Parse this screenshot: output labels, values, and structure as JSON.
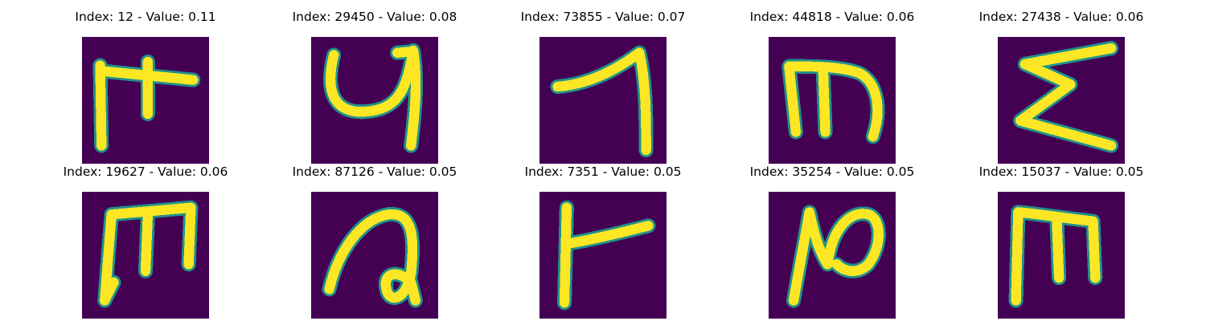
{
  "chart_data": {
    "type": "heatmap",
    "colormap": "viridis",
    "background_color": "#440154",
    "stroke_color": "#fde725",
    "edge_color": "#21918c",
    "rows": 2,
    "cols": 5,
    "panels": [
      {
        "title": "Index: 12 - Value: 0.11",
        "index": 12,
        "value": 0.11,
        "glyph": "F"
      },
      {
        "title": "Index: 29450 - Value: 0.08",
        "index": 29450,
        "value": 0.08,
        "glyph": "y"
      },
      {
        "title": "Index: 73855 - Value: 0.07",
        "index": 73855,
        "value": 0.07,
        "glyph": "7"
      },
      {
        "title": "Index: 44818 - Value: 0.06",
        "index": 44818,
        "value": 0.06,
        "glyph": "m"
      },
      {
        "title": "Index: 27438 - Value: 0.06",
        "index": 27438,
        "value": 0.06,
        "glyph": "Σ"
      },
      {
        "title": "Index: 19627 - Value: 0.06",
        "index": 19627,
        "value": 0.06,
        "glyph": "m"
      },
      {
        "title": "Index: 87126 - Value: 0.05",
        "index": 87126,
        "value": 0.05,
        "glyph": "a"
      },
      {
        "title": "Index: 7351 - Value: 0.05",
        "index": 7351,
        "value": 0.05,
        "glyph": "r"
      },
      {
        "title": "Index: 35254 - Value: 0.05",
        "index": 35254,
        "value": 0.05,
        "glyph": "n"
      },
      {
        "title": "Index: 15037 - Value: 0.05",
        "index": 15037,
        "value": 0.05,
        "glyph": "m"
      }
    ]
  }
}
